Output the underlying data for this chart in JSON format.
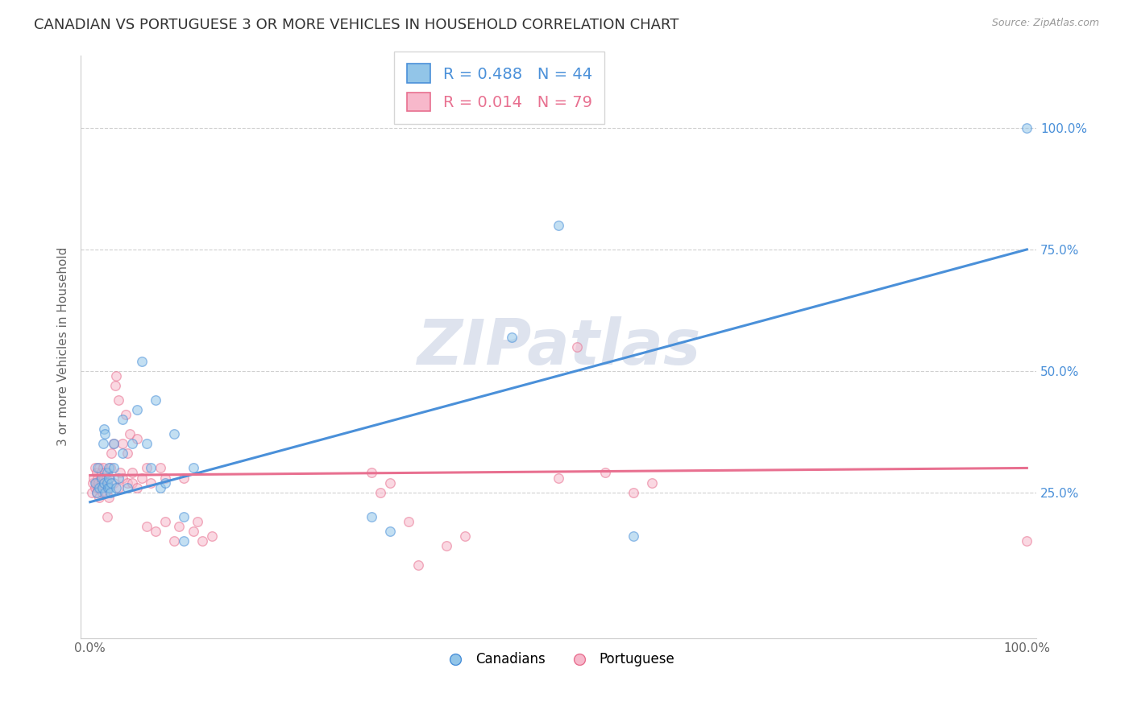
{
  "title": "CANADIAN VS PORTUGUESE 3 OR MORE VEHICLES IN HOUSEHOLD CORRELATION CHART",
  "source": "Source: ZipAtlas.com",
  "ylabel": "3 or more Vehicles in Household",
  "legend_blue_r": "R = 0.488",
  "legend_blue_n": "N = 44",
  "legend_pink_r": "R = 0.014",
  "legend_pink_n": "N = 79",
  "watermark": "ZIPatlas",
  "blue_color": "#92c5e8",
  "pink_color": "#f7b8cb",
  "blue_line_color": "#4a90d9",
  "pink_line_color": "#e87090",
  "blue_scatter": [
    [
      0.5,
      27
    ],
    [
      0.7,
      25
    ],
    [
      0.8,
      30
    ],
    [
      1.0,
      26
    ],
    [
      1.2,
      28
    ],
    [
      1.3,
      26
    ],
    [
      1.4,
      35
    ],
    [
      1.5,
      27
    ],
    [
      1.5,
      38
    ],
    [
      1.6,
      37
    ],
    [
      1.6,
      25
    ],
    [
      1.8,
      27
    ],
    [
      1.8,
      29
    ],
    [
      1.9,
      26
    ],
    [
      2.0,
      28
    ],
    [
      2.0,
      30
    ],
    [
      2.1,
      26
    ],
    [
      2.2,
      25
    ],
    [
      2.3,
      27
    ],
    [
      2.5,
      30
    ],
    [
      2.5,
      35
    ],
    [
      2.8,
      26
    ],
    [
      3.0,
      28
    ],
    [
      3.5,
      40
    ],
    [
      3.5,
      33
    ],
    [
      4.0,
      26
    ],
    [
      4.5,
      35
    ],
    [
      5.0,
      42
    ],
    [
      5.5,
      52
    ],
    [
      6.0,
      35
    ],
    [
      6.5,
      30
    ],
    [
      7.0,
      44
    ],
    [
      7.5,
      26
    ],
    [
      8.0,
      27
    ],
    [
      9.0,
      37
    ],
    [
      10.0,
      20
    ],
    [
      10.0,
      15
    ],
    [
      11.0,
      30
    ],
    [
      30.0,
      20
    ],
    [
      32.0,
      17
    ],
    [
      45.0,
      57
    ],
    [
      50.0,
      80
    ],
    [
      58.0,
      16
    ],
    [
      100.0,
      100
    ]
  ],
  "pink_scatter": [
    [
      0.2,
      25
    ],
    [
      0.3,
      27
    ],
    [
      0.4,
      28
    ],
    [
      0.5,
      26
    ],
    [
      0.5,
      30
    ],
    [
      0.6,
      27
    ],
    [
      0.7,
      25
    ],
    [
      0.7,
      29
    ],
    [
      0.8,
      26
    ],
    [
      0.8,
      28
    ],
    [
      0.9,
      27
    ],
    [
      1.0,
      24
    ],
    [
      1.0,
      30
    ],
    [
      1.1,
      26
    ],
    [
      1.1,
      28
    ],
    [
      1.2,
      27
    ],
    [
      1.2,
      29
    ],
    [
      1.3,
      25
    ],
    [
      1.3,
      28
    ],
    [
      1.4,
      26
    ],
    [
      1.4,
      30
    ],
    [
      1.5,
      27
    ],
    [
      1.5,
      28
    ],
    [
      1.6,
      26
    ],
    [
      1.6,
      29
    ],
    [
      1.7,
      25
    ],
    [
      1.7,
      28
    ],
    [
      1.8,
      20
    ],
    [
      1.8,
      27
    ],
    [
      1.9,
      26
    ],
    [
      2.0,
      24
    ],
    [
      2.0,
      28
    ],
    [
      2.2,
      30
    ],
    [
      2.3,
      33
    ],
    [
      2.5,
      27
    ],
    [
      2.5,
      35
    ],
    [
      2.7,
      47
    ],
    [
      2.8,
      49
    ],
    [
      3.0,
      26
    ],
    [
      3.0,
      44
    ],
    [
      3.2,
      29
    ],
    [
      3.5,
      35
    ],
    [
      3.5,
      28
    ],
    [
      3.8,
      41
    ],
    [
      4.0,
      27
    ],
    [
      4.0,
      33
    ],
    [
      4.2,
      37
    ],
    [
      4.5,
      29
    ],
    [
      4.5,
      27
    ],
    [
      5.0,
      26
    ],
    [
      5.0,
      36
    ],
    [
      5.5,
      28
    ],
    [
      6.0,
      30
    ],
    [
      6.0,
      18
    ],
    [
      6.5,
      27
    ],
    [
      7.0,
      17
    ],
    [
      7.5,
      30
    ],
    [
      8.0,
      19
    ],
    [
      8.0,
      28
    ],
    [
      9.0,
      15
    ],
    [
      9.5,
      18
    ],
    [
      10.0,
      28
    ],
    [
      11.0,
      17
    ],
    [
      11.5,
      19
    ],
    [
      12.0,
      15
    ],
    [
      13.0,
      16
    ],
    [
      30.0,
      29
    ],
    [
      31.0,
      25
    ],
    [
      32.0,
      27
    ],
    [
      34.0,
      19
    ],
    [
      35.0,
      10
    ],
    [
      38.0,
      14
    ],
    [
      40.0,
      16
    ],
    [
      50.0,
      28
    ],
    [
      52.0,
      55
    ],
    [
      55.0,
      29
    ],
    [
      58.0,
      25
    ],
    [
      100.0,
      15
    ],
    [
      60.0,
      27
    ]
  ],
  "blue_trendline_x": [
    0,
    100
  ],
  "blue_trendline_y": [
    23,
    75
  ],
  "pink_trendline_x": [
    0,
    100
  ],
  "pink_trendline_y": [
    28.5,
    30.0
  ],
  "xlim": [
    -1,
    101
  ],
  "ylim": [
    -5,
    115
  ],
  "yticks": [
    25,
    50,
    75,
    100
  ],
  "ytick_labels": [
    "25.0%",
    "50.0%",
    "75.0%",
    "100.0%"
  ],
  "xtick_left": "0.0%",
  "xtick_right": "100.0%",
  "grid_color": "#d0d0d0",
  "background_color": "#ffffff",
  "title_fontsize": 13,
  "axis_label_fontsize": 11,
  "tick_fontsize": 11,
  "scatter_size": 70,
  "scatter_alpha": 0.55,
  "scatter_linewidth": 1.0
}
